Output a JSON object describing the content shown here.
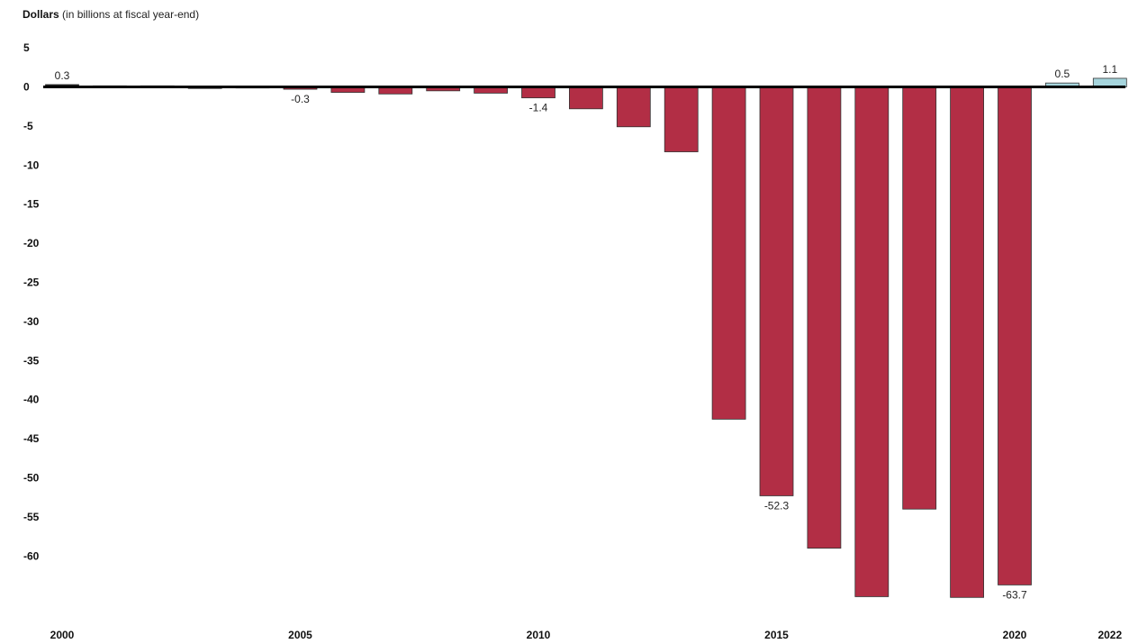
{
  "chart_data": {
    "type": "bar",
    "ylabel": "Dollars",
    "ylabel_note": "(in billions at fiscal year-end)",
    "categories": [
      "2000",
      "2001",
      "2002",
      "2003",
      "2004",
      "2005",
      "2006",
      "2007",
      "2008",
      "2009",
      "2010",
      "2011",
      "2012",
      "2013",
      "2014",
      "2015",
      "2016",
      "2017",
      "2018",
      "2019",
      "2020",
      "2021",
      "2022"
    ],
    "x_tick_labels": [
      "2000",
      "2005",
      "2010",
      "2015",
      "2020",
      "2022"
    ],
    "values": [
      0.3,
      0.1,
      0.1,
      -0.2,
      -0.1,
      -0.3,
      -0.7,
      -0.9,
      -0.5,
      -0.8,
      -1.4,
      -2.8,
      -5.1,
      -8.3,
      -42.5,
      -52.3,
      -59.0,
      -65.2,
      -54.0,
      -65.3,
      -63.7,
      0.5,
      1.1
    ],
    "data_labels": {
      "2000": "0.3",
      "2005": "-0.3",
      "2010": "-1.4",
      "2015": "-52.3",
      "2020": "-63.7",
      "2021": "0.5",
      "2022": "1.1"
    },
    "y_ticks": [
      "5",
      "0",
      "-5",
      "-10",
      "-15",
      "-20",
      "-25",
      "-30",
      "-35",
      "-40",
      "-45",
      "-50",
      "-55",
      "-60"
    ],
    "ylim": [
      -66,
      5
    ],
    "grid": false,
    "colors": {
      "negative": "#b22e45",
      "positive": "#a6d5dd",
      "baseline": "#000000"
    }
  }
}
